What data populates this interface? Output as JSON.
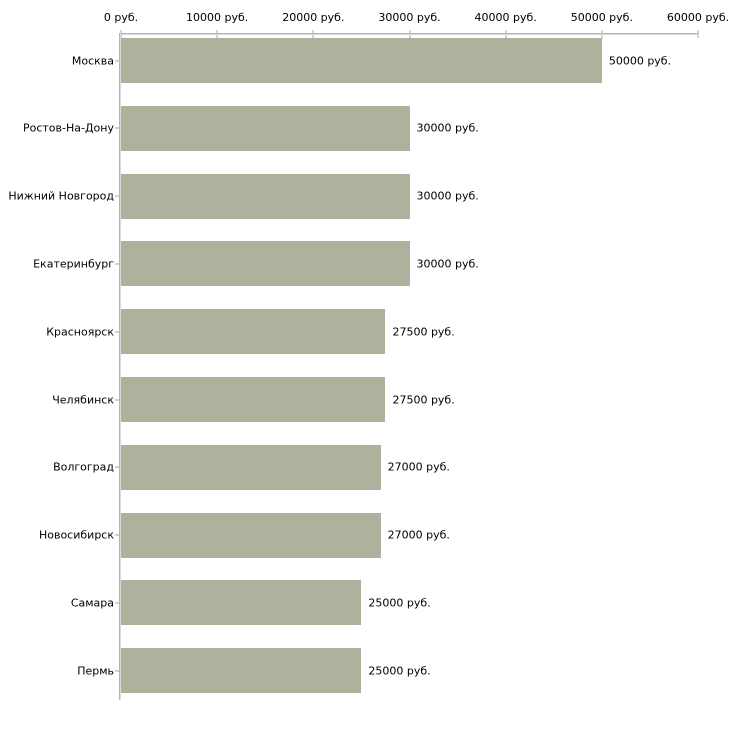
{
  "chart_data": {
    "type": "bar",
    "orientation": "horizontal",
    "title": "",
    "xlabel": "",
    "ylabel": "",
    "categories": [
      "Москва",
      "Ростов-На-Дону",
      "Нижний Новгород",
      "Екатеринбург",
      "Красноярск",
      "Челябинск",
      "Волгоград",
      "Новосибирск",
      "Самара",
      "Пермь"
    ],
    "values": [
      50000,
      30000,
      30000,
      30000,
      27500,
      27500,
      27000,
      27000,
      25000,
      25000
    ],
    "value_labels": [
      "50000 руб.",
      "30000 руб.",
      "30000 руб.",
      "30000 руб.",
      "27500 руб.",
      "27500 руб.",
      "27000 руб.",
      "27000 руб.",
      "25000 руб.",
      "25000 руб."
    ],
    "x_ticks": [
      0,
      10000,
      20000,
      30000,
      40000,
      50000,
      60000
    ],
    "x_tick_labels": [
      "0 руб.",
      "10000 руб.",
      "20000 руб.",
      "30000 руб.",
      "40000 руб.",
      "50000 руб.",
      "60000 руб."
    ],
    "xlim": [
      0,
      60000
    ],
    "grid": false,
    "legend_position": "none",
    "axis_position": "top",
    "colors": {
      "bar_fill": "#acb29b",
      "axis_line": "#c0c0c0",
      "tick_mark": "#d6d9b8",
      "category_tick": "#d3d5c0",
      "text": "#000000",
      "background": "#ffffff"
    }
  }
}
